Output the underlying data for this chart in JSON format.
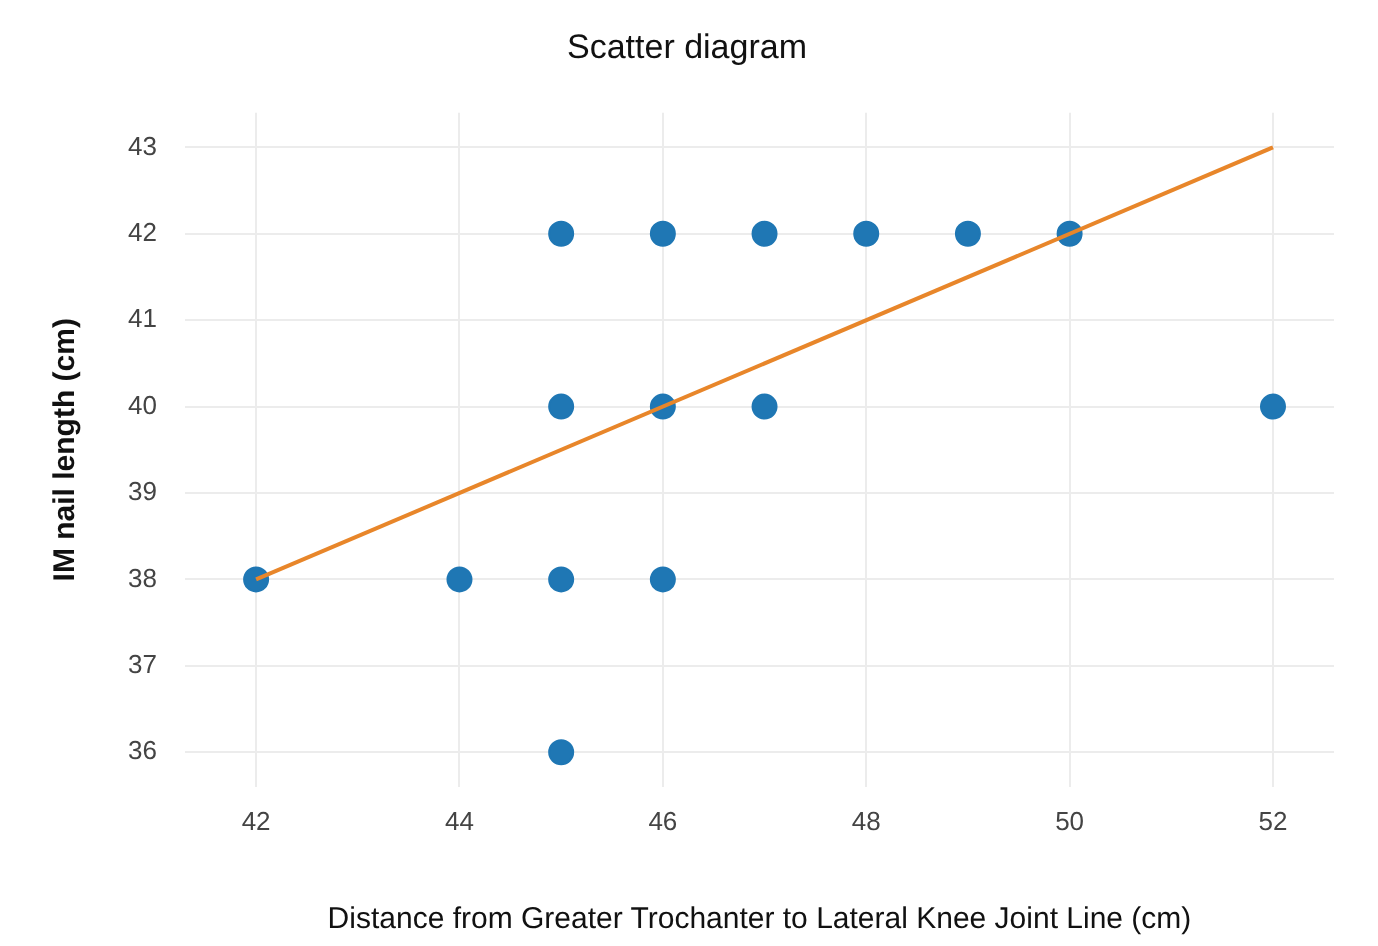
{
  "chart_data": {
    "type": "scatter",
    "title": "Scatter diagram",
    "xlabel": "Distance from Greater Trochanter to Lateral Knee Joint Line (cm)",
    "ylabel": "IM nail length (cm)",
    "series": [
      {
        "marker": "circle",
        "color": "#1f77b4",
        "x": [
          42,
          44,
          45,
          45,
          45,
          45,
          46,
          46,
          46,
          47,
          47,
          48,
          49,
          50,
          52
        ],
        "values": [
          38,
          38,
          42,
          40,
          38,
          36,
          42,
          40,
          38,
          42,
          40,
          42,
          42,
          42,
          40
        ]
      },
      {
        "type": "line",
        "color": "#e8862a",
        "x": [
          42,
          52
        ],
        "values": [
          38,
          43
        ]
      }
    ],
    "xlim": [
      41.3,
      52.6
    ],
    "ylim": [
      35.6,
      43.4
    ],
    "xticks": [
      42,
      44,
      46,
      48,
      50,
      52
    ],
    "yticks": [
      36,
      37,
      38,
      39,
      40,
      41,
      42,
      43
    ],
    "grid": true,
    "legend": false
  }
}
